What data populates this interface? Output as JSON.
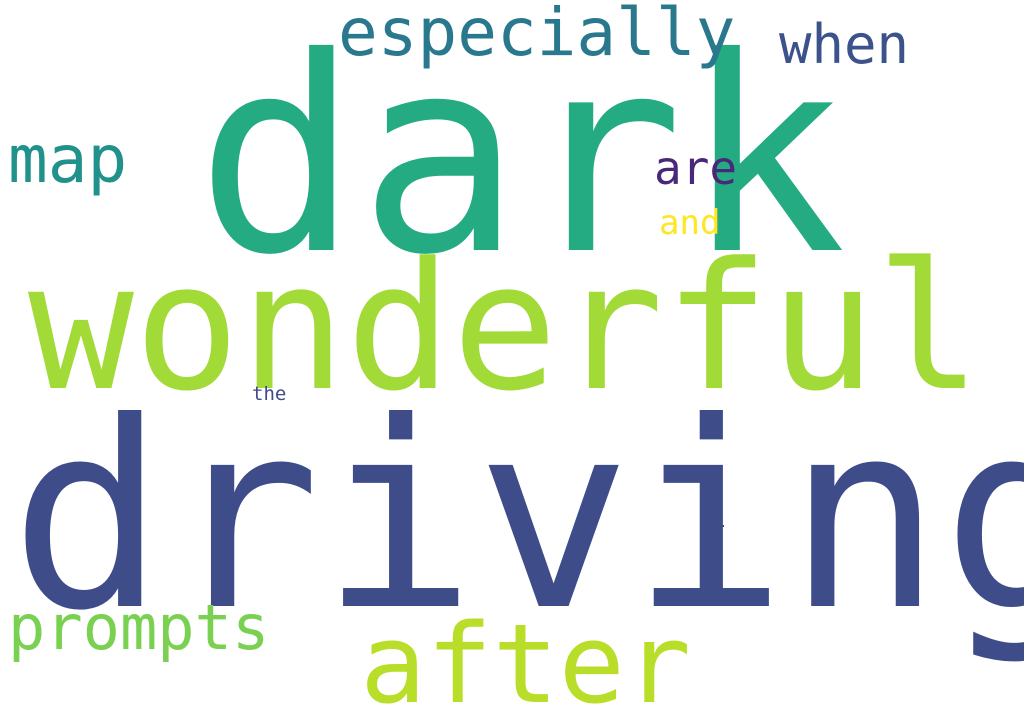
{
  "words": [
    {
      "key": "dark",
      "text": "dark",
      "color": "#25ab82"
    },
    {
      "key": "driving",
      "text": "driving",
      "color": "#3e4c8a"
    },
    {
      "key": "wonderful",
      "text": "wonderful",
      "color": "#a2da37"
    },
    {
      "key": "after",
      "text": "after",
      "color": "#b8de29"
    },
    {
      "key": "especially",
      "text": "especially",
      "color": "#2a788e"
    },
    {
      "key": "map",
      "text": "map",
      "color": "#21918c"
    },
    {
      "key": "prompts",
      "text": "prompts",
      "color": "#7ad151"
    },
    {
      "key": "when",
      "text": "when",
      "color": "#3b528b"
    },
    {
      "key": "are",
      "text": "are",
      "color": "#482878"
    },
    {
      "key": "and",
      "text": "and",
      "color": "#fde725"
    },
    {
      "key": "the",
      "text": "the",
      "color": "#3e4a89"
    }
  ]
}
